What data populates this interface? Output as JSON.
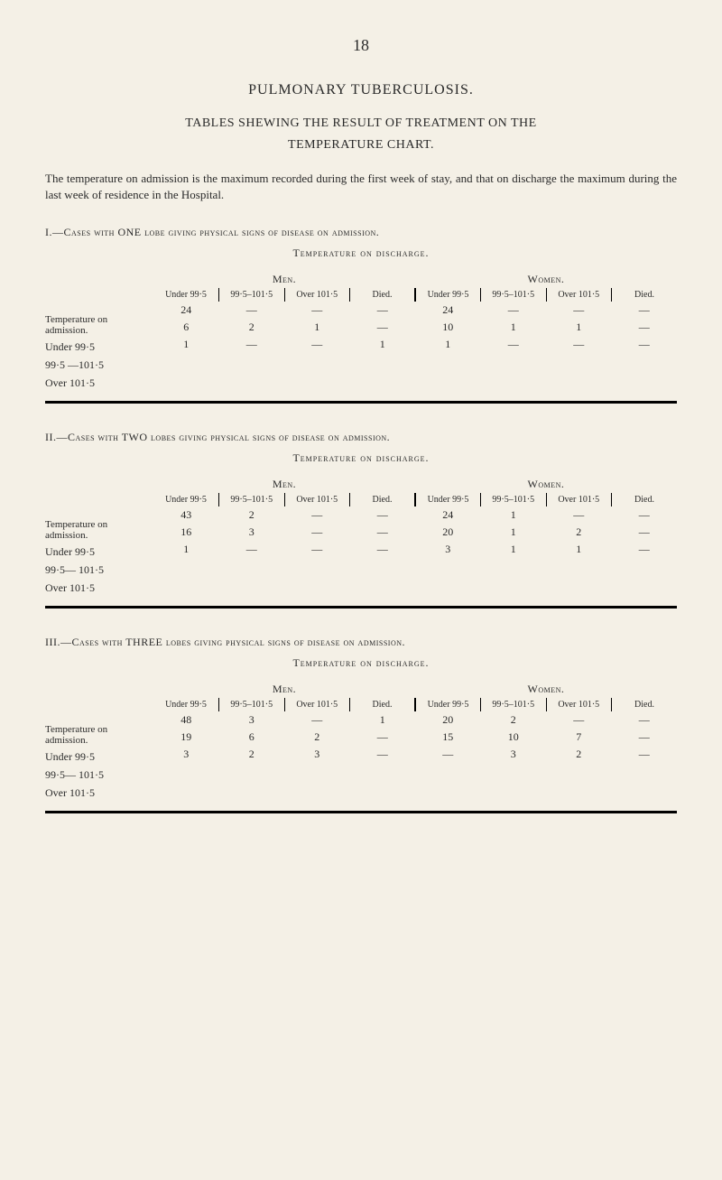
{
  "pageNumber": "18",
  "mainTitle": "PULMONARY TUBERCULOSIS.",
  "subTitle1": "TABLES SHEWING THE RESULT OF TREATMENT ON THE",
  "subTitle2": "TEMPERATURE CHART.",
  "bodyText": "The temperature on admission is the maximum recorded during the first week of stay, and that on discharge the maximum during the last week of residence in the Hospital.",
  "sections": [
    {
      "label": "I.—Cases with ONE lobe giving physical signs of disease on admission.",
      "tableTitle": "Temperature on discharge.",
      "sideLabel": "Temperature on admission.",
      "genders": [
        "Men.",
        "Women."
      ],
      "colHeaders": [
        "Under 99·5",
        "99·5–101·5",
        "Over 101·5",
        "Died.",
        "Under 99·5",
        "99·5–101·5",
        "Over 101·5",
        "Died."
      ],
      "rowLabels": [
        "Under 99·5",
        "99·5 —101·5",
        "Over 101·5"
      ],
      "rows": [
        [
          "24",
          "—",
          "—",
          "—",
          "24",
          "—",
          "—",
          "—"
        ],
        [
          "6",
          "2",
          "1",
          "—",
          "10",
          "1",
          "1",
          "—"
        ],
        [
          "1",
          "—",
          "—",
          "1",
          "1",
          "—",
          "—",
          "—"
        ]
      ]
    },
    {
      "label": "II.—Cases with TWO lobes giving physical signs of disease on admission.",
      "tableTitle": "Temperature on discharge.",
      "sideLabel": "Temperature on admission.",
      "genders": [
        "Men.",
        "Women."
      ],
      "colHeaders": [
        "Under 99·5",
        "99·5–101·5",
        "Over 101·5",
        "Died.",
        "Under 99·5",
        "99·5–101·5",
        "Over 101·5",
        "Died."
      ],
      "rowLabels": [
        "Under 99·5",
        "99·5— 101·5",
        "Over 101·5"
      ],
      "rows": [
        [
          "43",
          "2",
          "—",
          "—",
          "24",
          "1",
          "—",
          "—"
        ],
        [
          "16",
          "3",
          "—",
          "—",
          "20",
          "1",
          "2",
          "—"
        ],
        [
          "1",
          "—",
          "—",
          "—",
          "3",
          "1",
          "1",
          "—"
        ]
      ]
    },
    {
      "label": "III.—Cases with THREE lobes giving physical signs of disease on admission.",
      "tableTitle": "Temperature on discharge.",
      "sideLabel": "Temperature on admission.",
      "genders": [
        "Men.",
        "Women."
      ],
      "colHeaders": [
        "Under 99·5",
        "99·5–101·5",
        "Over 101·5",
        "Died.",
        "Under 99·5",
        "99·5–101·5",
        "Over 101·5",
        "Died."
      ],
      "rowLabels": [
        "Under 99·5",
        "99·5— 101·5",
        "Over 101·5"
      ],
      "rows": [
        [
          "48",
          "3",
          "—",
          "1",
          "20",
          "2",
          "—",
          "—"
        ],
        [
          "19",
          "6",
          "2",
          "—",
          "15",
          "10",
          "7",
          "—"
        ],
        [
          "3",
          "2",
          "3",
          "—",
          "—",
          "3",
          "2",
          "—"
        ]
      ]
    }
  ]
}
